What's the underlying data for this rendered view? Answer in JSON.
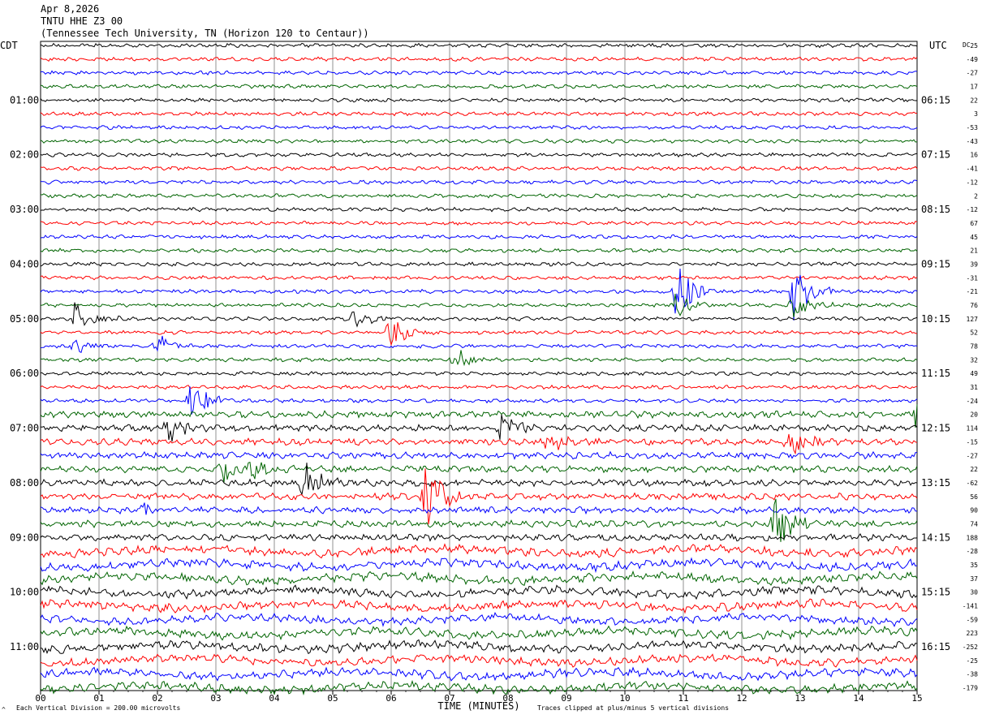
{
  "header": {
    "date": "Apr 8,2026",
    "station": "TNTU HHE Z3 00",
    "location": "(Tennessee Tech University, TN (Horizon 120 to Centaur))"
  },
  "left_label": "CDT",
  "right_label": "UTC",
  "dc_label": "DC",
  "footer": {
    "left_mark": "^",
    "scale_note": "Each Vertical Division =  200.00 microvolts",
    "clip_note": "Traces clipped at plus/minus 5 vertical divisions"
  },
  "chart_data": {
    "type": "line",
    "title": "",
    "xlabel": "TIME (MINUTES)",
    "ylabel": "",
    "xlim": [
      0,
      15
    ],
    "x_ticks": [
      "00",
      "01",
      "02",
      "03",
      "04",
      "05",
      "06",
      "07",
      "08",
      "09",
      "10",
      "11",
      "12",
      "13",
      "14",
      "15"
    ],
    "trace_count": 48,
    "trace_colors": [
      "#000000",
      "#ff0000",
      "#0000ff",
      "#006400"
    ],
    "left_time_labels": [
      "01:00",
      "02:00",
      "03:00",
      "04:00",
      "05:00",
      "06:00",
      "07:00",
      "08:00",
      "09:00",
      "10:00",
      "11:00"
    ],
    "right_time_labels": [
      "06:15",
      "07:15",
      "08:15",
      "09:15",
      "10:15",
      "11:15",
      "12:15",
      "13:15",
      "14:15",
      "15:15",
      "16:15"
    ],
    "dc_offsets": [
      "25",
      "-49",
      "-27",
      "17",
      "22",
      "3",
      "-53",
      "-43",
      "16",
      "-41",
      "-12",
      "2",
      "-12",
      "67",
      "45",
      "21",
      "39",
      "-31",
      "-21",
      "76",
      "127",
      "52",
      "78",
      "32",
      "49",
      "31",
      "-24",
      "20",
      "114",
      "-15",
      "-27",
      "22",
      "-62",
      "56",
      "90",
      "74",
      "188",
      "-28",
      "35",
      "37",
      "30",
      "-141",
      "-59",
      "223",
      "-252",
      "-25",
      "-38",
      "-179"
    ],
    "events": [
      {
        "trace": 18,
        "minute": 10.9,
        "amplitude": 40
      },
      {
        "trace": 18,
        "minute": 12.9,
        "amplitude": 40
      },
      {
        "trace": 19,
        "minute": 10.9,
        "amplitude": 18
      },
      {
        "trace": 19,
        "minute": 12.9,
        "amplitude": 18
      },
      {
        "trace": 20,
        "minute": 0.6,
        "amplitude": 22
      },
      {
        "trace": 20,
        "minute": 5.4,
        "amplitude": 18
      },
      {
        "trace": 21,
        "minute": 6.0,
        "amplitude": 22
      },
      {
        "trace": 22,
        "minute": 2.0,
        "amplitude": 16
      },
      {
        "trace": 22,
        "minute": 0.6,
        "amplitude": 10
      },
      {
        "trace": 23,
        "minute": 7.1,
        "amplitude": 16
      },
      {
        "trace": 26,
        "minute": 2.6,
        "amplitude": 28
      },
      {
        "trace": 27,
        "minute": 15.0,
        "amplitude": 18
      },
      {
        "trace": 28,
        "minute": 2.2,
        "amplitude": 24
      },
      {
        "trace": 28,
        "minute": 7.9,
        "amplitude": 18
      },
      {
        "trace": 29,
        "minute": 8.7,
        "amplitude": 22
      },
      {
        "trace": 29,
        "minute": 12.8,
        "amplitude": 22
      },
      {
        "trace": 31,
        "minute": 3.1,
        "amplitude": 20
      },
      {
        "trace": 31,
        "minute": 3.6,
        "amplitude": 20
      },
      {
        "trace": 32,
        "minute": 4.5,
        "amplitude": 30
      },
      {
        "trace": 33,
        "minute": 6.6,
        "amplitude": 50
      },
      {
        "trace": 34,
        "minute": 1.8,
        "amplitude": 10
      },
      {
        "trace": 35,
        "minute": 12.6,
        "amplitude": 42
      }
    ]
  }
}
